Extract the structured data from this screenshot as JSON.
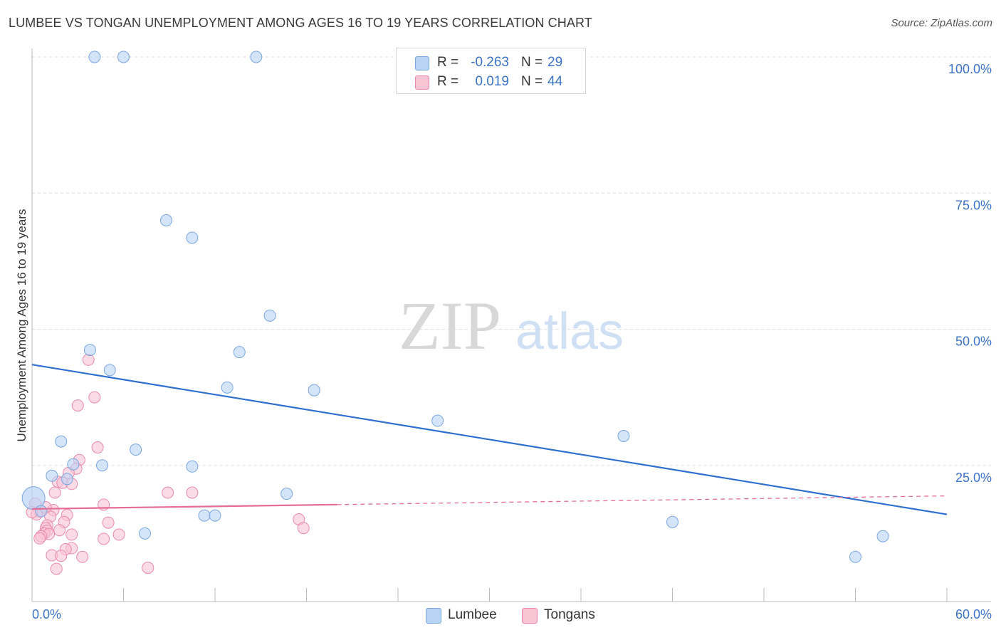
{
  "header": {
    "title": "LUMBEE VS TONGAN UNEMPLOYMENT AMONG AGES 16 TO 19 YEARS CORRELATION CHART",
    "source": "Source: ZipAtlas.com"
  },
  "legend": {
    "rows": [
      {
        "r_label": "R =",
        "r_value": "-0.263",
        "n_label": "N =",
        "n_value": "29"
      },
      {
        "r_label": "R =",
        "r_value": "0.019",
        "n_label": "N =",
        "n_value": "44"
      }
    ]
  },
  "watermark": {
    "zip": "ZIP",
    "atlas": "atlas"
  },
  "colors": {
    "lumbee_fill": "#b9d3f5",
    "lumbee_stroke": "#7aa6e0",
    "lumbee_line": "#2f6fce",
    "tongans_fill": "#f8c3d3",
    "tongans_stroke": "#e98aaa",
    "tongans_line": "#e46c97",
    "axis_label": "#3b73c7",
    "grid": "#dddddd"
  },
  "chart_data": {
    "type": "scatter",
    "title": "LUMBEE VS TONGAN UNEMPLOYMENT AMONG AGES 16 TO 19 YEARS CORRELATION CHART",
    "xlabel": "",
    "ylabel": "Unemployment Among Ages 16 to 19 years",
    "xlim": [
      0,
      60
    ],
    "ylim": [
      0,
      100
    ],
    "x_tick_labels": [
      "0.0%",
      "60.0%"
    ],
    "y_ticks": [
      25,
      50,
      75,
      100
    ],
    "y_tick_labels": [
      "25.0%",
      "50.0%",
      "75.0%",
      "100.0%"
    ],
    "grid": true,
    "legend_position": "bottom-center",
    "series": [
      {
        "name": "Lumbee",
        "r": -0.263,
        "n": 29,
        "trend": {
          "x": [
            0,
            60
          ],
          "y": [
            43.5,
            16.0
          ],
          "solid_to": 60
        },
        "points": [
          {
            "x": 4.1,
            "y": 100.0
          },
          {
            "x": 6.0,
            "y": 100.0
          },
          {
            "x": 14.7,
            "y": 100.0
          },
          {
            "x": 8.8,
            "y": 70.0
          },
          {
            "x": 10.5,
            "y": 66.8
          },
          {
            "x": 15.6,
            "y": 52.5
          },
          {
            "x": 3.8,
            "y": 46.2
          },
          {
            "x": 13.6,
            "y": 45.8
          },
          {
            "x": 5.1,
            "y": 42.5
          },
          {
            "x": 12.8,
            "y": 39.3
          },
          {
            "x": 18.5,
            "y": 38.8
          },
          {
            "x": 26.6,
            "y": 33.2
          },
          {
            "x": 38.8,
            "y": 30.4
          },
          {
            "x": 1.9,
            "y": 29.4
          },
          {
            "x": 6.8,
            "y": 27.9
          },
          {
            "x": 2.7,
            "y": 25.2
          },
          {
            "x": 4.6,
            "y": 25.0
          },
          {
            "x": 10.5,
            "y": 24.8
          },
          {
            "x": 1.3,
            "y": 23.1
          },
          {
            "x": 2.3,
            "y": 22.5
          },
          {
            "x": 16.7,
            "y": 19.8
          },
          {
            "x": 0.1,
            "y": 19.0
          },
          {
            "x": 0.6,
            "y": 16.6
          },
          {
            "x": 11.3,
            "y": 15.8
          },
          {
            "x": 12.0,
            "y": 15.8
          },
          {
            "x": 42.0,
            "y": 14.6
          },
          {
            "x": 7.4,
            "y": 12.5
          },
          {
            "x": 55.8,
            "y": 12.0
          },
          {
            "x": 54.0,
            "y": 8.2
          }
        ]
      },
      {
        "name": "Tongans",
        "r": 0.019,
        "n": 44,
        "trend": {
          "x": [
            0,
            60
          ],
          "y": [
            17.0,
            19.4
          ],
          "solid_to": 20
        },
        "points": [
          {
            "x": 3.7,
            "y": 44.4
          },
          {
            "x": 4.1,
            "y": 37.5
          },
          {
            "x": 3.0,
            "y": 36.0
          },
          {
            "x": 4.3,
            "y": 28.3
          },
          {
            "x": 3.1,
            "y": 26.0
          },
          {
            "x": 2.9,
            "y": 24.4
          },
          {
            "x": 2.4,
            "y": 23.6
          },
          {
            "x": 1.7,
            "y": 22.0
          },
          {
            "x": 2.0,
            "y": 21.8
          },
          {
            "x": 2.6,
            "y": 21.6
          },
          {
            "x": 1.5,
            "y": 20.0
          },
          {
            "x": 8.9,
            "y": 20.0
          },
          {
            "x": 10.5,
            "y": 20.0
          },
          {
            "x": 0.2,
            "y": 18.0
          },
          {
            "x": 4.7,
            "y": 17.8
          },
          {
            "x": 1.4,
            "y": 16.8
          },
          {
            "x": 0.5,
            "y": 16.5
          },
          {
            "x": 0.3,
            "y": 16.0
          },
          {
            "x": 2.3,
            "y": 15.9
          },
          {
            "x": 1.2,
            "y": 15.6
          },
          {
            "x": 17.5,
            "y": 15.1
          },
          {
            "x": 2.1,
            "y": 14.6
          },
          {
            "x": 5.0,
            "y": 14.5
          },
          {
            "x": 1.0,
            "y": 14.0
          },
          {
            "x": 0.9,
            "y": 13.5
          },
          {
            "x": 17.8,
            "y": 13.5
          },
          {
            "x": 1.0,
            "y": 13.0
          },
          {
            "x": 0.8,
            "y": 12.5
          },
          {
            "x": 1.1,
            "y": 12.4
          },
          {
            "x": 2.6,
            "y": 12.3
          },
          {
            "x": 5.7,
            "y": 12.3
          },
          {
            "x": 0.6,
            "y": 12.0
          },
          {
            "x": 0.5,
            "y": 11.6
          },
          {
            "x": 4.7,
            "y": 11.5
          },
          {
            "x": 2.6,
            "y": 9.8
          },
          {
            "x": 2.2,
            "y": 9.6
          },
          {
            "x": 1.3,
            "y": 8.5
          },
          {
            "x": 1.9,
            "y": 8.4
          },
          {
            "x": 3.3,
            "y": 8.2
          },
          {
            "x": 1.6,
            "y": 6.0
          },
          {
            "x": 7.6,
            "y": 6.2
          },
          {
            "x": 0.0,
            "y": 16.4
          },
          {
            "x": 1.8,
            "y": 13.1
          },
          {
            "x": 0.9,
            "y": 17.3
          }
        ]
      }
    ]
  }
}
